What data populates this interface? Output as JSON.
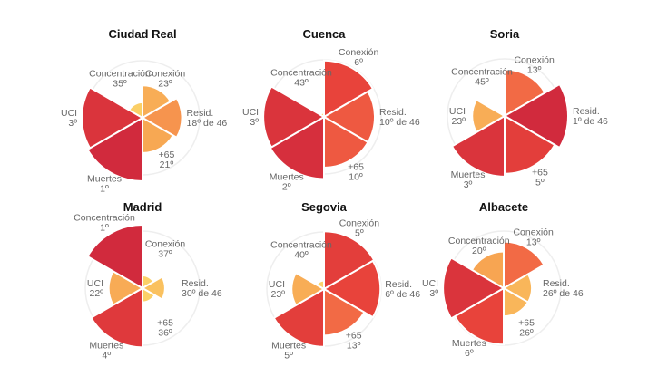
{
  "chart_data": [
    {
      "type": "polar-area",
      "title": "Ciudad Real",
      "categories": [
        "Conexión",
        "Resid.",
        "+65",
        "Muertes",
        "UCI",
        "Concentración"
      ],
      "values": [
        23,
        18,
        21,
        1,
        3,
        35
      ],
      "value_labels": [
        "23º",
        "18º de 46",
        "21º",
        "1º",
        "3º",
        "35º"
      ]
    },
    {
      "type": "polar-area",
      "title": "Cuenca",
      "categories": [
        "Conexión",
        "Resid.",
        "+65",
        "Muertes",
        "UCI",
        "Concentración"
      ],
      "values": [
        6,
        10,
        10,
        2,
        3,
        43
      ],
      "value_labels": [
        "6º",
        "10º de 46",
        "10º",
        "2º",
        "3º",
        "43º"
      ]
    },
    {
      "type": "polar-area",
      "title": "Soria",
      "categories": [
        "Conexión",
        "Resid.",
        "+65",
        "Muertes",
        "UCI",
        "Concentración"
      ],
      "values": [
        13,
        1,
        5,
        3,
        23,
        45
      ],
      "value_labels": [
        "13º",
        "1º de 46",
        "5º",
        "3º",
        "23º",
        "45º"
      ]
    },
    {
      "type": "polar-area",
      "title": "Madrid",
      "categories": [
        "Conexión",
        "Resid.",
        "+65",
        "Muertes",
        "UCI",
        "Concentración"
      ],
      "values": [
        37,
        30,
        36,
        4,
        22,
        1
      ],
      "value_labels": [
        "37º",
        "30º de 46",
        "36º",
        "4º",
        "22º",
        "1º"
      ]
    },
    {
      "type": "polar-area",
      "title": "Segovia",
      "categories": [
        "Conexión",
        "Resid.",
        "+65",
        "Muertes",
        "UCI",
        "Concentración"
      ],
      "values": [
        5,
        6,
        13,
        5,
        23,
        40
      ],
      "value_labels": [
        "5º",
        "6º de 46",
        "13º",
        "5º",
        "23º",
        "40º"
      ]
    },
    {
      "type": "polar-area",
      "title": "Albacete",
      "categories": [
        "Conexión",
        "Resid.",
        "+65",
        "Muertes",
        "UCI",
        "Concentración"
      ],
      "values": [
        13,
        26,
        26,
        6,
        3,
        20
      ],
      "value_labels": [
        "13º",
        "26º de 46",
        "26º",
        "6º",
        "3º",
        "20º"
      ]
    }
  ],
  "rank_total": 46,
  "colors": {
    "rank_1": "#d12a3d",
    "rank_6": "#e8433b",
    "rank_13": "#f26a45",
    "rank_20": "#f7a552",
    "rank_35": "#fbcf66",
    "grid": "#eeeeee",
    "label": "#666666"
  }
}
